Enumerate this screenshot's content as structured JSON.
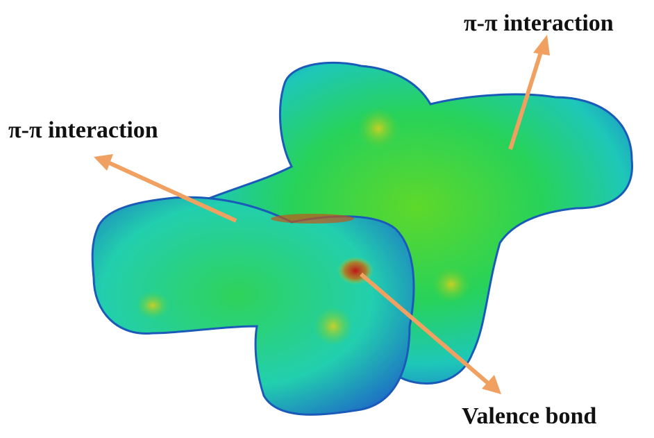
{
  "annotations": [
    {
      "label": "π-π interaction"
    },
    {
      "label": "π-π interaction"
    },
    {
      "label": "Valence bond"
    }
  ]
}
